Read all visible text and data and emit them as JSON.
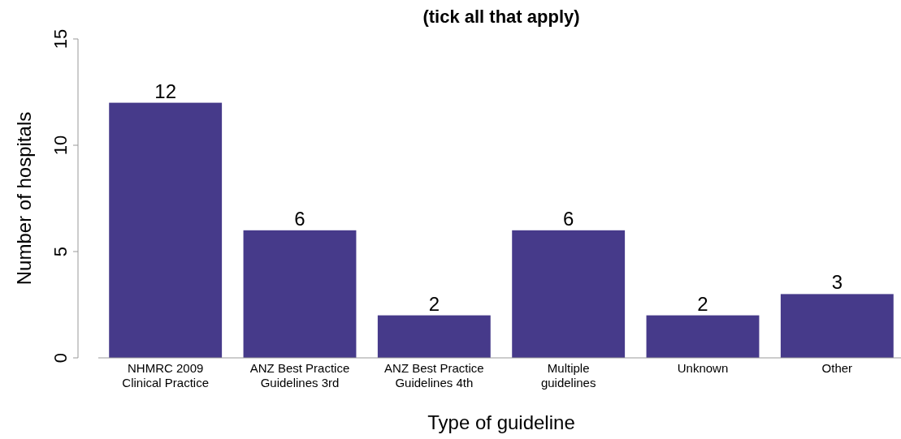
{
  "chart_data": {
    "type": "bar",
    "title": "(tick all that apply)",
    "xlabel": "Type of guideline",
    "ylabel": "Number of hospitals",
    "categories": [
      "NHMRC 2009 Clinical Practice",
      "ANZ Best Practice Guidelines 3rd",
      "ANZ Best Practice Guidelines 4th",
      "Multiple guidelines",
      "Unknown",
      "Other"
    ],
    "values": [
      12,
      6,
      2,
      6,
      2,
      3
    ],
    "color": "#463a8a",
    "ylim": [
      0,
      15
    ],
    "yticks": [
      0,
      5,
      10,
      15
    ],
    "data_labels": true,
    "grid": false
  }
}
